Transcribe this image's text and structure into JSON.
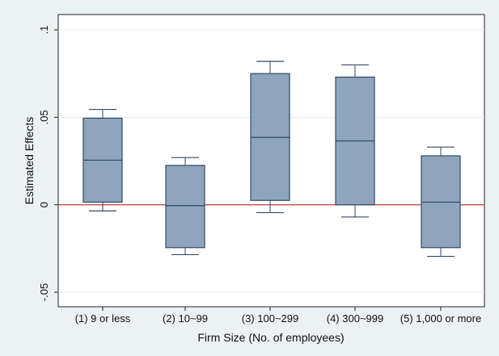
{
  "chart_data": {
    "type": "box",
    "xlabel": "Firm Size (No. of employees)",
    "ylabel": "Estimated Effects",
    "ylim": [
      -0.05,
      0.1
    ],
    "yticks": [
      {
        "value": 0.1,
        "label": ".1"
      },
      {
        "value": 0.05,
        "label": ".05"
      },
      {
        "value": 0.0,
        "label": "0"
      },
      {
        "value": -0.05,
        "label": "-.05"
      }
    ],
    "reference_line": {
      "value": 0,
      "color": "#c0504d"
    },
    "grid": "horizontal",
    "box_fill": "#8fa5bd",
    "box_stroke": "#2f4a66",
    "categories": [
      "(1) 9 or less",
      "(2) 10~99",
      "(3) 100~299",
      "(4) 300~999",
      "(5) 1,000 or more"
    ],
    "boxes": [
      {
        "whisker_low": -0.0035,
        "q1": 0.0015,
        "median": 0.0255,
        "q3": 0.0495,
        "whisker_high": 0.0545
      },
      {
        "whisker_low": -0.0285,
        "q1": -0.0245,
        "median": -0.0005,
        "q3": 0.0225,
        "whisker_high": 0.027
      },
      {
        "whisker_low": -0.0045,
        "q1": 0.0025,
        "median": 0.0385,
        "q3": 0.075,
        "whisker_high": 0.082
      },
      {
        "whisker_low": -0.007,
        "q1": 0.0,
        "median": 0.0365,
        "q3": 0.073,
        "whisker_high": 0.08
      },
      {
        "whisker_low": -0.0295,
        "q1": -0.0245,
        "median": 0.0015,
        "q3": 0.028,
        "whisker_high": 0.033
      }
    ]
  }
}
